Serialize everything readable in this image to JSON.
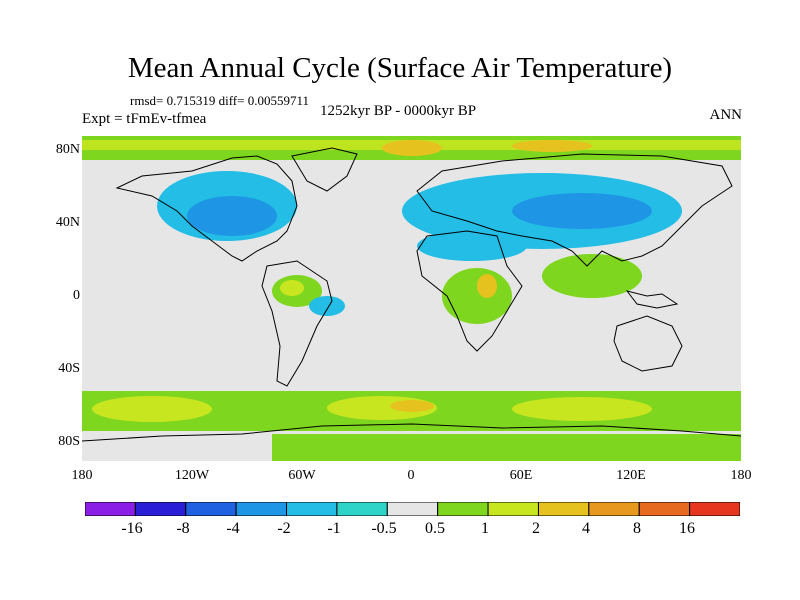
{
  "title": "Mean Annual Cycle (Surface Air Temperature)",
  "stats": "rmsd= 0.715319 diff= 0.00559711",
  "experiment": "Expt = tFmEv-tfmea",
  "period": "1252kyr BP - 0000kyr BP",
  "season": "ANN",
  "y_axis_labels": [
    "80N",
    "40N",
    "0",
    "40S",
    "80S"
  ],
  "x_axis_labels": [
    "180",
    "120W",
    "60W",
    "0",
    "60E",
    "120E",
    "180"
  ],
  "colorbar": {
    "labels": [
      "-16",
      "-8",
      "-4",
      "-2",
      "-1",
      "-0.5",
      "0.5",
      "1",
      "2",
      "4",
      "8",
      "16"
    ],
    "colors": [
      "#8b1fe6",
      "#2a1fd6",
      "#1f61e0",
      "#1f95e6",
      "#23bde6",
      "#2fd4c8",
      "#e6e6e6",
      "#7fd61f",
      "#c8e61f",
      "#e6c21f",
      "#e6981f",
      "#e66a1f",
      "#e6361f"
    ]
  },
  "map_colors": {
    "ocean": "#e6e6e6",
    "land_outline": "#000000",
    "cool": "#23bde6",
    "cooler": "#1f95e6",
    "warm_1": "#7fd61f",
    "warm_2": "#c8e61f",
    "warm_4": "#e6c21f",
    "warm_8": "#e6981f"
  }
}
